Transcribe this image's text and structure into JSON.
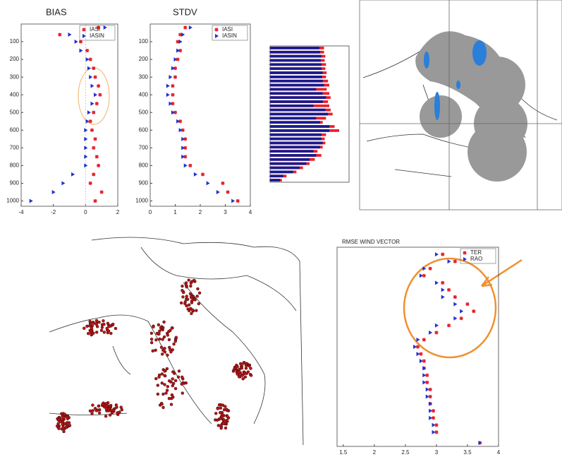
{
  "chart_data": [
    {
      "type": "scatter",
      "title": "BIAS",
      "y_inverted": true,
      "xlim": [
        -4,
        2
      ],
      "xticks": [
        -4,
        -2,
        0,
        2
      ],
      "ylim": [
        0,
        1030
      ],
      "yticks": [
        100,
        200,
        300,
        400,
        500,
        600,
        700,
        800,
        900,
        1000
      ],
      "y": [
        20,
        60,
        100,
        150,
        200,
        250,
        300,
        350,
        400,
        450,
        500,
        550,
        600,
        650,
        700,
        750,
        800,
        850,
        900,
        950,
        1000
      ],
      "series": [
        {
          "name": "IASI",
          "color": "#e8202a",
          "marker": "star",
          "x": [
            0.8,
            -1.6,
            -0.3,
            0.1,
            0.3,
            0.5,
            0.6,
            0.8,
            0.9,
            0.7,
            0.5,
            0.3,
            0.4,
            0.6,
            0.5,
            0.7,
            0.8,
            0.5,
            0.3,
            1.0,
            0.6
          ]
        },
        {
          "name": "IASIN",
          "color": "#2030d0",
          "marker": "triangle",
          "x": [
            1.2,
            -1.0,
            -0.6,
            -0.3,
            0.1,
            0.2,
            0.3,
            0.4,
            0.6,
            0.4,
            0.2,
            0.1,
            0.0,
            0.0,
            0.0,
            0.0,
            0.0,
            -0.8,
            -1.4,
            -2.0,
            -3.4
          ]
        }
      ]
    },
    {
      "type": "scatter",
      "title": "STDV",
      "y_inverted": true,
      "xlim": [
        0,
        4
      ],
      "xticks": [
        0,
        1,
        2,
        3,
        4
      ],
      "ylim": [
        0,
        1030
      ],
      "yticks": [
        100,
        200,
        300,
        400,
        500,
        600,
        700,
        800,
        900,
        1000
      ],
      "y": [
        20,
        60,
        100,
        150,
        200,
        250,
        300,
        350,
        400,
        450,
        500,
        550,
        600,
        650,
        700,
        750,
        800,
        850,
        900,
        950,
        1000
      ],
      "series": [
        {
          "name": "IASI",
          "color": "#e8202a",
          "marker": "star",
          "x": [
            1.4,
            1.2,
            1.1,
            1.2,
            1.1,
            1.0,
            1.0,
            0.9,
            0.9,
            0.9,
            1.0,
            1.2,
            1.3,
            1.4,
            1.4,
            1.4,
            1.6,
            2.1,
            2.9,
            3.1,
            3.5
          ]
        },
        {
          "name": "IASIN",
          "color": "#2030d0",
          "marker": "triangle",
          "x": [
            1.6,
            1.3,
            1.2,
            1.1,
            1.0,
            0.9,
            0.8,
            0.7,
            0.7,
            0.8,
            0.9,
            1.1,
            1.2,
            1.3,
            1.3,
            1.3,
            1.4,
            1.8,
            2.3,
            2.7,
            3.3
          ]
        }
      ]
    },
    {
      "type": "hbar",
      "xlim": [
        0,
        1.2
      ],
      "series": [
        {
          "color": "#e8202a",
          "values": [
            0.82,
            0.82,
            0.84,
            0.83,
            0.85,
            0.84,
            0.86,
            0.85,
            0.88,
            0.9,
            0.86,
            0.9,
            0.92,
            0.88,
            0.9,
            0.92,
            0.95,
            0.85,
            0.8,
            0.98,
            1.05,
            0.85,
            0.83,
            0.84,
            0.8,
            0.72,
            0.78,
            0.68,
            0.6,
            0.5,
            0.4,
            0.25,
            0.18
          ]
        },
        {
          "color": "#1a1a8c",
          "values": [
            0.75,
            0.76,
            0.78,
            0.77,
            0.78,
            0.78,
            0.8,
            0.79,
            0.8,
            0.82,
            0.7,
            0.8,
            0.85,
            0.8,
            0.66,
            0.84,
            0.88,
            0.7,
            0.76,
            0.9,
            0.9,
            0.78,
            0.78,
            0.8,
            0.76,
            0.66,
            0.7,
            0.6,
            0.55,
            0.45,
            0.35,
            0.2,
            0.15
          ]
        }
      ]
    },
    {
      "type": "scatter",
      "title": "RMSE WIND VECTOR",
      "y_inverted": true,
      "xlim": [
        1.4,
        4
      ],
      "xticks": [
        1.5,
        2,
        2.5,
        3,
        3.5,
        4
      ],
      "ylim": [
        0,
        28
      ],
      "y": [
        1,
        2,
        3,
        4,
        5,
        6,
        7,
        8,
        9,
        10,
        11,
        12,
        13,
        14,
        15,
        16,
        17,
        18,
        19,
        20,
        21,
        22,
        23,
        24,
        25,
        26,
        27.5
      ],
      "series": [
        {
          "name": "TER",
          "color": "#e8202a",
          "marker": "star",
          "x": [
            3.1,
            3.3,
            2.9,
            2.8,
            3.1,
            3.2,
            3.3,
            3.5,
            3.6,
            3.4,
            3.2,
            3.0,
            2.8,
            2.7,
            2.75,
            2.8,
            2.8,
            2.85,
            2.85,
            2.9,
            2.9,
            2.9,
            2.95,
            2.95,
            3.0,
            3.0,
            3.7
          ]
        },
        {
          "name": "RAO",
          "color": "#2030d0",
          "marker": "triangle",
          "x": [
            3.0,
            3.2,
            2.8,
            2.75,
            3.0,
            3.1,
            3.1,
            3.3,
            3.4,
            3.3,
            3.0,
            2.9,
            2.7,
            2.65,
            2.7,
            2.75,
            2.8,
            2.8,
            2.8,
            2.85,
            2.85,
            2.9,
            2.9,
            2.9,
            2.95,
            2.95,
            3.7
          ]
        }
      ]
    }
  ]
}
